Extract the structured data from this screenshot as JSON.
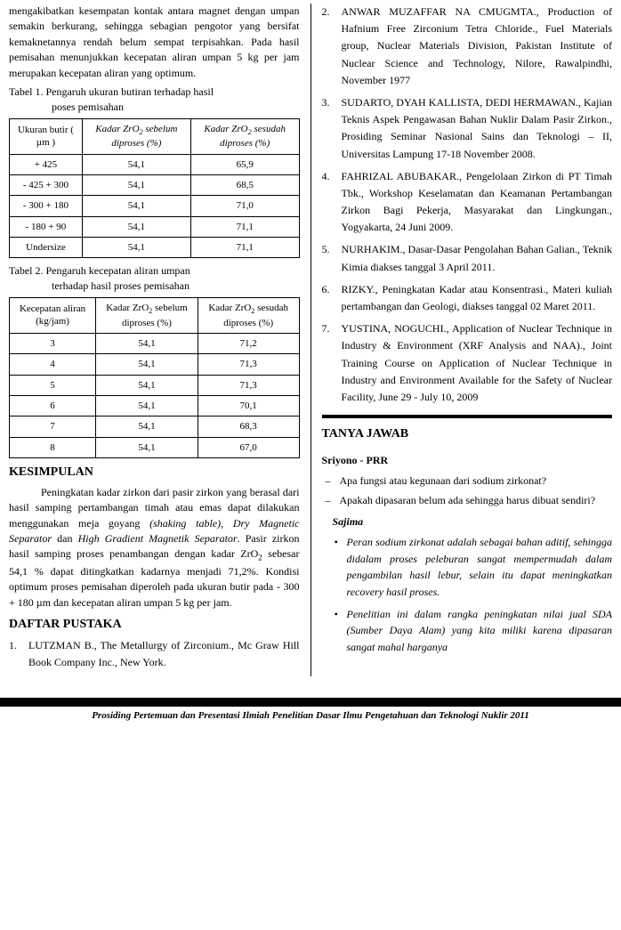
{
  "colors": {
    "text": "#000000",
    "background": "#ffffff",
    "border": "#000000"
  },
  "typography": {
    "body_font": "Times New Roman",
    "body_size_pt": 12,
    "heading_size_pt": 14
  },
  "left": {
    "intro_para": "mengakibatkan kesempatan kontak antara magnet dengan umpan semakin berkurang, sehingga sebagian pengotor yang bersifat kemaknetannya rendah belum sempat terpisahkan. Pada hasil pemisahan menunjukkan kecepatan aliran umpan 5 kg per jam merupakan kecepatan aliran yang optimum.",
    "table1_caption_a": "Tabel 1.   Pengaruh ukuran butiran terhadap hasil",
    "table1_caption_b": "poses pemisahan",
    "table1": {
      "type": "table",
      "header_col1": "Ukuran butir ( µm )",
      "header_col2_a": "Kadar ZrO",
      "header_col2_b": " sebelum diproses (%)",
      "header_col3_a": "Kadar ZrO",
      "header_col3_b": " sesudah diproses (%)",
      "rows": [
        {
          "c1": "+ 425",
          "c2": "54,1",
          "c3": "65,9"
        },
        {
          "c1": "- 425 + 300",
          "c2": "54,1",
          "c3": "68,5"
        },
        {
          "c1": "- 300 + 180",
          "c2": "54,1",
          "c3": "71,0"
        },
        {
          "c1": "- 180 + 90",
          "c2": "54,1",
          "c3": "71,1"
        },
        {
          "c1": "Undersize",
          "c2": "54,1",
          "c3": "71,1"
        }
      ]
    },
    "table2_caption_a": "Tabel 2.   Pengaruh   kecepatan   aliran   umpan",
    "table2_caption_b": "terhadap hasil proses pemisahan",
    "table2": {
      "type": "table",
      "header_col1": "Kecepatan aliran (kg/jam)",
      "header_col2_a": "Kadar ZrO",
      "header_col2_b": " sebelum diproses (%)",
      "header_col3_a": "Kadar ZrO",
      "header_col3_b": " sesudah diproses (%)",
      "rows": [
        {
          "c1": "3",
          "c2": "54,1",
          "c3": "71,2"
        },
        {
          "c1": "4",
          "c2": "54,1",
          "c3": "71,3"
        },
        {
          "c1": "5",
          "c2": "54,1",
          "c3": "71,3"
        },
        {
          "c1": "6",
          "c2": "54,1",
          "c3": "70,1"
        },
        {
          "c1": "7",
          "c2": "54,1",
          "c3": "68,3"
        },
        {
          "c1": "8",
          "c2": "54,1",
          "c3": "67,0"
        }
      ]
    },
    "kesimpulan_heading": "KESIMPULAN",
    "kesimpulan_para_a": "Peningkatan kadar zirkon dari pasir zirkon yang berasal dari hasil samping pertambangan timah atau emas dapat dilakukan menggunakan meja goyang ",
    "kesimpulan_para_b": "(shaking table)",
    "kesimpulan_para_c": ", ",
    "kesimpulan_para_d": "Dry Magnetic Separator",
    "kesimpulan_para_e": " dan ",
    "kesimpulan_para_f": "High Gradient Magnetik Separator",
    "kesimpulan_para_g": ". Pasir zirkon hasil samping proses penambangan dengan kadar ZrO",
    "kesimpulan_para_h": " sebesar 54,1 % dapat ditingkatkan kadarnya menjadi 71,2%. Kondisi optimum proses pemisahan diperoleh pada ukuran butir pada - 300 + 180 µm dan kecepatan aliran umpan 5 kg per jam.",
    "daftar_heading": "DAFTAR PUSTAKA",
    "ref1_num": "1.",
    "ref1_text": "LUTZMAN B., The Metallurgy of Zirconium., Mc Graw Hill Book Company Inc., New York."
  },
  "right": {
    "refs": [
      {
        "num": "2.",
        "text": "ANWAR MUZAFFAR NA CMUGMTA., Production of Hafnium Free Zirconium Tetra Chloride., Fuel Materials group, Nuclear Materials Division, Pakistan Institute of Nuclear Science and Technology, Nilore, Rawalpindhi, November 1977"
      },
      {
        "num": "3.",
        "text": "SUDARTO, DYAH KALLISTA, DEDI HERMAWAN., Kajian Teknis Aspek Pengawasan Bahan Nuklir Dalam Pasir Zirkon., Prosiding Seminar Nasional Sains dan Teknologi – II, Universitas Lampung 17-18 November 2008."
      },
      {
        "num": "4.",
        "text": "FAHRIZAL ABUBAKAR., Pengelolaan Zirkon di PT Timah Tbk., Workshop Keselamatan dan Keamanan Pertambangan Zirkon Bagi Pekerja, Masyarakat dan Lingkungan., Yogyakarta, 24 Juni 2009."
      },
      {
        "num": "5.",
        "text": "NURHAKIM., Dasar-Dasar Pengolahan Bahan Galian., Teknik Kimia diakses tanggal 3 April 2011."
      },
      {
        "num": "6.",
        "text": "RIZKY., Peningkatan Kadar atau Konsentrasi., Materi kuliah pertambangan dan Geologi, diakses tanggal 02 Maret 2011."
      },
      {
        "num": "7.",
        "text": "YUSTINA, NOGUCHI., Application of Nuclear Technique in Industry & Environment (XRF Analysis and NAA)., Joint Training Course on Application of Nuclear Technique in Industry and Environment Available for the Safety of Nuclear Facility, June 29 - July 10, 2009"
      }
    ],
    "tanya_heading": "TANYA JAWAB",
    "sriyono": "Sriyono - PRR",
    "q1": "Apa fungsi atau kegunaan dari sodium zirkonat?",
    "q2": "Apakah dipasaran belum ada sehingga harus dibuat sendiri?",
    "sajima": "Sajima",
    "a1": "Peran sodium zirkonat adalah sebagai bahan aditif, sehingga didalam proses peleburan sangat mempermudah dalam pengambilan hasil lebur, selain itu dapat meningkatkan recovery hasil proses.",
    "a2": "Penelitian ini dalam rangka peningkatan nilai jual SDA (Sumber Daya Alam) yang kita miliki karena dipasaran sangat mahal harganya"
  },
  "footer": "Prosiding Pertemuan dan Presentasi Ilmiah Penelitian Dasar Ilmu Pengetahuan dan Teknologi Nuklir 2011"
}
